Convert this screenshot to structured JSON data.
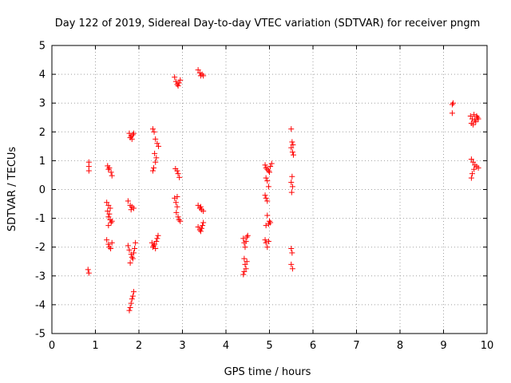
{
  "chart_data": {
    "type": "scatter",
    "title": "Day 122 of 2019, Sidereal Day-to-day VTEC variation (SDTVAR) for receiver pngm",
    "xlabel": "GPS time / hours",
    "ylabel": "SDTVAR / TECUs",
    "xlim": [
      0,
      10
    ],
    "ylim": [
      -5,
      5
    ],
    "xticks": [
      "0",
      "1",
      "2",
      "3",
      "4",
      "5",
      "6",
      "7",
      "8",
      "9",
      "10"
    ],
    "yticks": [
      "-5",
      "-4",
      "-3",
      "-2",
      "-1",
      "0",
      "1",
      "2",
      "3",
      "4",
      "5"
    ],
    "grid": true,
    "marker": "+",
    "color": "#ff0000",
    "series": [
      {
        "name": "SDTVAR",
        "points": [
          [
            0.85,
            0.95
          ],
          [
            0.85,
            0.8
          ],
          [
            0.85,
            0.65
          ],
          [
            0.83,
            -2.78
          ],
          [
            0.85,
            -2.9
          ],
          [
            1.28,
            0.82
          ],
          [
            1.32,
            0.75
          ],
          [
            1.3,
            0.7
          ],
          [
            1.36,
            0.6
          ],
          [
            1.38,
            0.48
          ],
          [
            1.26,
            -0.45
          ],
          [
            1.3,
            -0.55
          ],
          [
            1.34,
            -0.65
          ],
          [
            1.28,
            -0.75
          ],
          [
            1.32,
            -0.85
          ],
          [
            1.3,
            -0.95
          ],
          [
            1.34,
            -1.05
          ],
          [
            1.36,
            -1.15
          ],
          [
            1.3,
            -1.25
          ],
          [
            1.38,
            -1.1
          ],
          [
            1.26,
            -1.75
          ],
          [
            1.3,
            -1.9
          ],
          [
            1.32,
            -2.0
          ],
          [
            1.35,
            -2.05
          ],
          [
            1.38,
            -1.85
          ],
          [
            1.78,
            1.95
          ],
          [
            1.82,
            1.85
          ],
          [
            1.86,
            1.9
          ],
          [
            1.8,
            1.8
          ],
          [
            1.84,
            1.75
          ],
          [
            1.88,
            1.95
          ],
          [
            1.75,
            -0.4
          ],
          [
            1.8,
            -0.55
          ],
          [
            1.84,
            -0.6
          ],
          [
            1.88,
            -0.65
          ],
          [
            1.82,
            -0.7
          ],
          [
            1.75,
            -1.95
          ],
          [
            1.78,
            -2.1
          ],
          [
            1.82,
            -2.25
          ],
          [
            1.86,
            -2.4
          ],
          [
            1.8,
            -2.55
          ],
          [
            1.84,
            -2.35
          ],
          [
            1.88,
            -2.2
          ],
          [
            1.9,
            -2.05
          ],
          [
            1.92,
            -1.85
          ],
          [
            1.78,
            -4.2
          ],
          [
            1.8,
            -4.1
          ],
          [
            1.82,
            -3.95
          ],
          [
            1.84,
            -3.8
          ],
          [
            1.86,
            -3.7
          ],
          [
            1.88,
            -3.55
          ],
          [
            2.32,
            2.1
          ],
          [
            2.35,
            2.0
          ],
          [
            2.38,
            1.75
          ],
          [
            2.42,
            1.6
          ],
          [
            2.45,
            1.5
          ],
          [
            2.36,
            1.25
          ],
          [
            2.4,
            1.1
          ],
          [
            2.38,
            0.95
          ],
          [
            2.34,
            0.75
          ],
          [
            2.32,
            0.65
          ],
          [
            2.3,
            -1.85
          ],
          [
            2.34,
            -1.95
          ],
          [
            2.38,
            -2.05
          ],
          [
            2.4,
            -1.8
          ],
          [
            2.42,
            -1.7
          ],
          [
            2.44,
            -1.6
          ],
          [
            2.36,
            -1.9
          ],
          [
            2.32,
            -2.0
          ],
          [
            2.82,
            3.9
          ],
          [
            2.85,
            3.75
          ],
          [
            2.88,
            3.65
          ],
          [
            2.9,
            3.6
          ],
          [
            2.92,
            3.7
          ],
          [
            2.95,
            3.8
          ],
          [
            2.84,
            0.72
          ],
          [
            2.88,
            0.65
          ],
          [
            2.9,
            0.55
          ],
          [
            2.93,
            0.42
          ],
          [
            2.82,
            -0.3
          ],
          [
            2.85,
            -0.45
          ],
          [
            2.88,
            -0.6
          ],
          [
            2.86,
            -0.8
          ],
          [
            2.9,
            -0.95
          ],
          [
            2.92,
            -1.05
          ],
          [
            2.95,
            -1.1
          ],
          [
            2.88,
            -0.25
          ],
          [
            3.36,
            4.15
          ],
          [
            3.4,
            4.05
          ],
          [
            3.42,
            3.95
          ],
          [
            3.45,
            4.0
          ],
          [
            3.48,
            3.95
          ],
          [
            3.36,
            -0.55
          ],
          [
            3.4,
            -0.65
          ],
          [
            3.44,
            -0.7
          ],
          [
            3.48,
            -0.75
          ],
          [
            3.42,
            -0.6
          ],
          [
            3.36,
            -1.3
          ],
          [
            3.4,
            -1.4
          ],
          [
            3.44,
            -1.35
          ],
          [
            3.46,
            -1.25
          ],
          [
            3.48,
            -1.15
          ],
          [
            3.42,
            -1.45
          ],
          [
            4.4,
            -1.7
          ],
          [
            4.42,
            -1.85
          ],
          [
            4.44,
            -2.0
          ],
          [
            4.46,
            -1.8
          ],
          [
            4.48,
            -1.65
          ],
          [
            4.5,
            -1.6
          ],
          [
            4.42,
            -2.4
          ],
          [
            4.44,
            -2.6
          ],
          [
            4.46,
            -2.75
          ],
          [
            4.42,
            -2.85
          ],
          [
            4.4,
            -2.95
          ],
          [
            4.48,
            -2.5
          ],
          [
            4.9,
            0.85
          ],
          [
            4.92,
            0.75
          ],
          [
            4.95,
            0.7
          ],
          [
            4.98,
            0.65
          ],
          [
            5.0,
            0.6
          ],
          [
            5.02,
            0.8
          ],
          [
            5.05,
            0.9
          ],
          [
            4.92,
            0.4
          ],
          [
            4.95,
            0.3
          ],
          [
            4.98,
            0.1
          ],
          [
            4.9,
            -0.2
          ],
          [
            4.92,
            -0.3
          ],
          [
            4.95,
            -0.4
          ],
          [
            4.95,
            -0.9
          ],
          [
            5.0,
            -1.1
          ],
          [
            4.98,
            -1.2
          ],
          [
            5.02,
            -1.15
          ],
          [
            4.92,
            -1.25
          ],
          [
            4.9,
            -1.75
          ],
          [
            4.92,
            -1.85
          ],
          [
            4.95,
            -2.0
          ],
          [
            4.98,
            -1.8
          ],
          [
            5.5,
            2.1
          ],
          [
            5.52,
            1.65
          ],
          [
            5.54,
            1.55
          ],
          [
            5.5,
            1.45
          ],
          [
            5.53,
            1.3
          ],
          [
            5.55,
            1.2
          ],
          [
            5.52,
            0.45
          ],
          [
            5.5,
            0.25
          ],
          [
            5.53,
            0.1
          ],
          [
            5.51,
            -0.1
          ],
          [
            5.5,
            -2.05
          ],
          [
            5.52,
            -2.2
          ],
          [
            5.5,
            -2.6
          ],
          [
            5.53,
            -2.75
          ],
          [
            9.2,
            2.95
          ],
          [
            9.22,
            3.0
          ],
          [
            9.2,
            2.65
          ],
          [
            9.62,
            2.55
          ],
          [
            9.66,
            2.45
          ],
          [
            9.7,
            2.6
          ],
          [
            9.74,
            2.35
          ],
          [
            9.78,
            2.5
          ],
          [
            9.64,
            2.3
          ],
          [
            9.68,
            2.25
          ],
          [
            9.72,
            2.4
          ],
          [
            9.76,
            2.55
          ],
          [
            9.8,
            2.45
          ],
          [
            9.64,
            1.05
          ],
          [
            9.68,
            0.95
          ],
          [
            9.72,
            0.85
          ],
          [
            9.76,
            0.8
          ],
          [
            9.8,
            0.75
          ],
          [
            9.7,
            0.7
          ],
          [
            9.66,
            0.55
          ],
          [
            9.64,
            0.4
          ]
        ]
      }
    ]
  }
}
